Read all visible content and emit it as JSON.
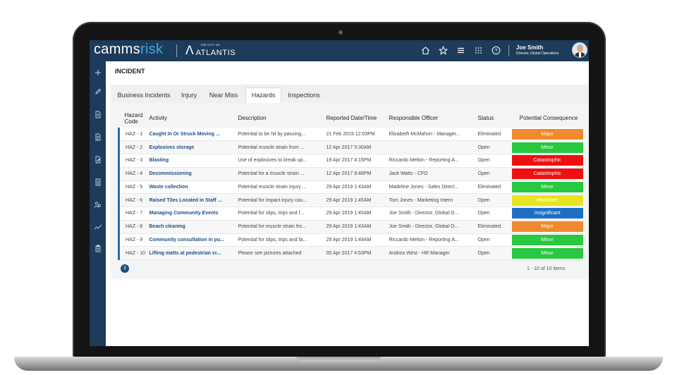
{
  "header": {
    "logo_prefix": "camms",
    "logo_suffix": "risk",
    "city_small": "THE CITY OF",
    "city_name": "ATLANTIS",
    "user_name": "Joe Smith",
    "user_role": "Director, Global Operations"
  },
  "page": {
    "title": "INCIDENT"
  },
  "tabs": [
    {
      "label": "Business Incidents",
      "active": false
    },
    {
      "label": "Injury",
      "active": false
    },
    {
      "label": "Near Miss",
      "active": false
    },
    {
      "label": "Hazards",
      "active": true
    },
    {
      "label": "Inspections",
      "active": false
    }
  ],
  "table": {
    "columns": [
      "Hazard Code",
      "Activity",
      "Description",
      "Reported Date/Time",
      "Responsible Officer",
      "Status",
      "Potential Consequence"
    ],
    "rows": [
      {
        "code": "HAZ - 1",
        "activity": "Caught In Or Struck Moving ...",
        "description": "Potential to be hit by passing...",
        "date": "21 Feb 2019 12:03PM",
        "officer": "Elizabeth McMahon - Manager...",
        "status": "Eliminated",
        "consequence": "Major"
      },
      {
        "code": "HAZ - 2",
        "activity": "Explosives storage",
        "description": "Potential muscle strain from ...",
        "date": "12 Apr 2017 5:30AM",
        "officer": "",
        "status": "Open",
        "consequence": "Minor"
      },
      {
        "code": "HAZ - 3",
        "activity": "Blasting",
        "description": "Use of explosives to break up...",
        "date": "19 Apr 2017 4:15PM",
        "officer": "Riccardo Melton - Reporting A...",
        "status": "Open",
        "consequence": "Catastrophic"
      },
      {
        "code": "HAZ - 4",
        "activity": "Decommissioning",
        "description": "Potential for a muscle strain ...",
        "date": "12 Apr 2017 8:48PM",
        "officer": "Jack Watts - CFO",
        "status": "Open",
        "consequence": "Catastrophic"
      },
      {
        "code": "HAZ - 5",
        "activity": "Waste collection",
        "description": "Potential muscle strain injury ...",
        "date": "29 Apr 2019 1:43AM",
        "officer": "Madeline Jones - Sales Direct...",
        "status": "Eliminated",
        "consequence": "Minor"
      },
      {
        "code": "HAZ - 6",
        "activity": "Raised Tiles Located in Staff ...",
        "description": "Potential for impact injury cau...",
        "date": "29 Apr 2019 1:45AM",
        "officer": "Tom Jones - Marketing Intern",
        "status": "Open",
        "consequence": "Moderate"
      },
      {
        "code": "HAZ - 7",
        "activity": "Managing Community Events",
        "description": "Potential for slips, trips and f...",
        "date": "29 Apr 2019 1:45AM",
        "officer": "Joe Smith - Director, Global O...",
        "status": "Open",
        "consequence": "Insignificant"
      },
      {
        "code": "HAZ - 8",
        "activity": "Beach cleaning",
        "description": "Potential for muscle strain fro...",
        "date": "29 Apr 2019 1:43AM",
        "officer": "Joe Smith - Director, Global O...",
        "status": "Eliminated",
        "consequence": "Major"
      },
      {
        "code": "HAZ - 9",
        "activity": "Community consultation in pu...",
        "description": "Potential for slips, trips and fa...",
        "date": "29 Apr 2019 1:49AM",
        "officer": "Riccardo Melton - Reporting A...",
        "status": "Open",
        "consequence": "Minor"
      },
      {
        "code": "HAZ - 10",
        "activity": "Lifting matts at pedestrian cr...",
        "description": "Please see pictures attached",
        "date": "05 Apr 2017 4:53PM",
        "officer": "Andrea West - HR Manager",
        "status": "Open",
        "consequence": "Minor"
      }
    ]
  },
  "consequence_colors": {
    "Major": "#f08a2c",
    "Minor": "#28c840",
    "Catastrophic": "#ee1010",
    "Moderate": "#e8e420",
    "Insignificant": "#1d6fc4"
  },
  "pagination": {
    "current_page": "1",
    "items_text": "1 - 10 of 10 items"
  },
  "icons": {
    "top": [
      "home-icon",
      "star-icon",
      "menu-icon",
      "apps-grid-icon",
      "help-icon"
    ],
    "side": [
      "add-icon",
      "pencil-icon",
      "report-icon",
      "document-icon",
      "file-edit-icon",
      "checklist-icon",
      "people-icon",
      "trend-icon",
      "clipboard-icon"
    ]
  }
}
